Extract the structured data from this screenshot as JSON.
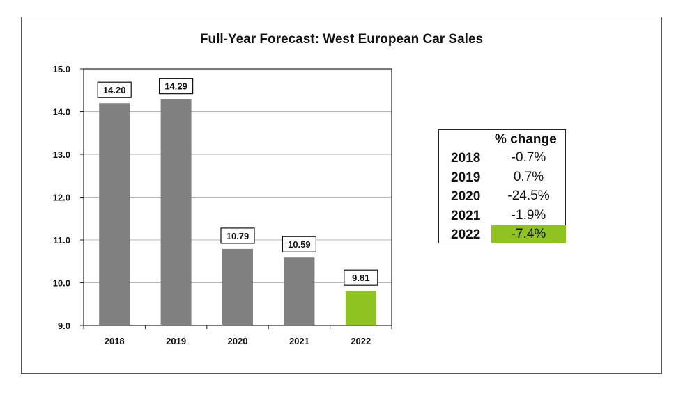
{
  "chart_data": {
    "type": "bar",
    "title": "Full-Year Forecast: West European Car Sales",
    "xlabel": "",
    "ylabel": "",
    "categories": [
      "2018",
      "2019",
      "2020",
      "2021",
      "2022"
    ],
    "values": [
      14.2,
      14.29,
      10.79,
      10.59,
      9.81
    ],
    "value_labels": [
      "14.20",
      "14.29",
      "10.79",
      "10.59",
      "9.81"
    ],
    "ylim": [
      9.0,
      15.0
    ],
    "yticks": [
      "9.0",
      "10.0",
      "11.0",
      "12.0",
      "13.0",
      "14.0",
      "15.0"
    ],
    "grid": true,
    "bar_color": "#808080",
    "highlight_color": "#8fc31f",
    "highlight_index": 4
  },
  "change_table": {
    "header": "% change",
    "rows": [
      {
        "year": "2018",
        "change": "-0.7%"
      },
      {
        "year": "2019",
        "change": "0.7%"
      },
      {
        "year": "2020",
        "change": "-24.5%"
      },
      {
        "year": "2021",
        "change": "-1.9%"
      },
      {
        "year": "2022",
        "change": "-7.4%",
        "highlight": true
      }
    ]
  }
}
